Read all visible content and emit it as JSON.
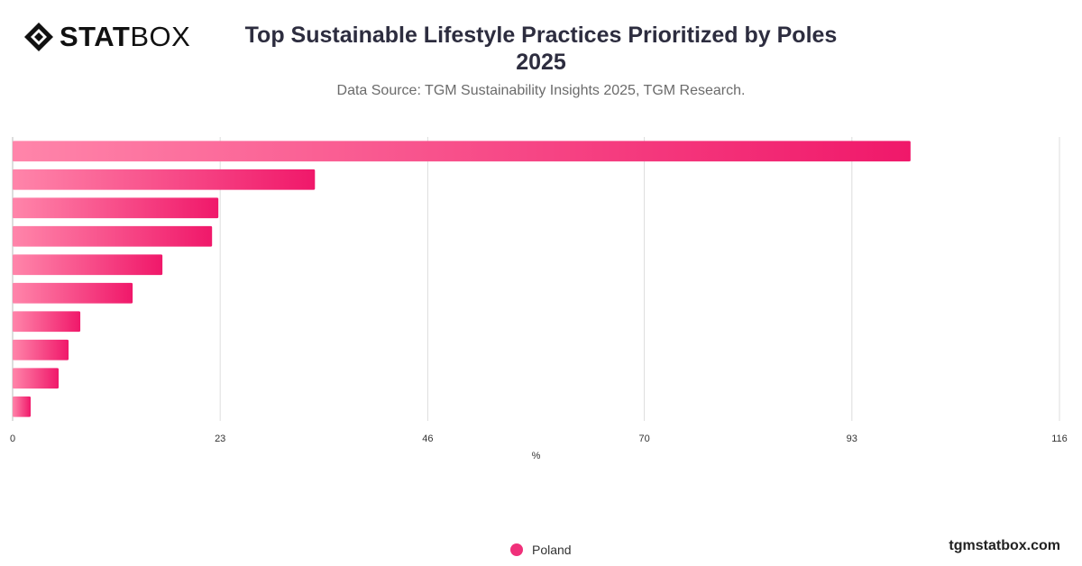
{
  "brand": {
    "part1": "STAT",
    "part2": "BOX",
    "site": "tgmstatbox.com"
  },
  "header": {
    "title_line1": "Top Sustainable Lifestyle Practices Prioritized by Poles",
    "title_line2": "2025",
    "source": "Data Source: TGM Sustainability Insights 2025, TGM Research."
  },
  "colors": {
    "bar_start": "#ff85aa",
    "bar_end": "#f0186a",
    "grid": "#dddddd",
    "axis_text": "#333333"
  },
  "chart_data": {
    "type": "bar",
    "orientation": "horizontal",
    "title": "Top Sustainable Lifestyle Practices Prioritized by Poles 2025",
    "xlabel": "%",
    "ylabel": "",
    "xlim": [
      0,
      116
    ],
    "ticks": [
      0,
      23,
      46,
      70,
      93,
      116
    ],
    "grid": true,
    "legend_position": "bottom",
    "series": [
      {
        "name": "Poland",
        "values": [
          99.5,
          33.5,
          22.8,
          22.1,
          16.6,
          13.3,
          7.5,
          6.2,
          5.1,
          2.0
        ]
      }
    ]
  }
}
